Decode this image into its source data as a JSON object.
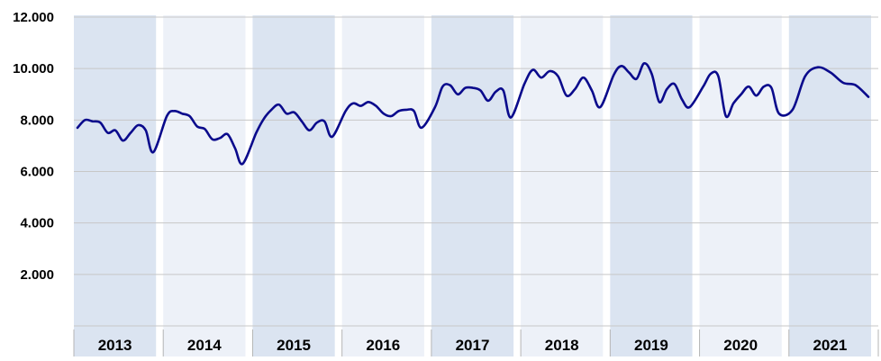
{
  "chart_data": {
    "type": "line",
    "title": "",
    "xlabel": "",
    "ylabel": "",
    "ylim": [
      0,
      12000
    ],
    "yticks": [
      2000,
      4000,
      6000,
      8000,
      10000,
      12000
    ],
    "ytick_labels": [
      "2.000",
      "4.000",
      "6.000",
      "8.000",
      "10.000",
      "12.000"
    ],
    "grid": true,
    "legend": "none",
    "years": [
      "2013",
      "2014",
      "2015",
      "2016",
      "2017",
      "2018",
      "2019",
      "2020",
      "2021"
    ],
    "series": [
      {
        "color": "#0a0a8c",
        "values": [
          [
            7700,
            8000,
            7950,
            7900,
            7500,
            7600,
            7200,
            7500,
            7800,
            7600,
            6750
          ],
          [
            8150,
            8350,
            8250,
            8150,
            7750,
            7650,
            7250,
            7300,
            7450,
            6900,
            6300
          ],
          [
            7500,
            8050,
            8400,
            8600,
            8250,
            8300,
            7950,
            7600,
            7900,
            7950,
            7350
          ],
          [
            8350,
            8650,
            8550,
            8700,
            8550,
            8250,
            8150,
            8350,
            8400,
            8350,
            7700
          ],
          [
            8500,
            9300,
            9350,
            9000,
            9250,
            9250,
            9150,
            8750,
            9100,
            9150,
            8100
          ],
          [
            9400,
            9950,
            9650,
            9900,
            9700,
            8950,
            9200,
            9650,
            9150,
            8500
          ],
          [
            9750,
            10100,
            9850,
            9600,
            10200,
            9800,
            8700,
            9200,
            9400,
            8800,
            8500
          ],
          [
            9300,
            9800,
            9700,
            8150,
            8650,
            9000,
            9300,
            8950,
            9300,
            9250,
            8250
          ],
          [
            8400,
            9700,
            10050,
            9850,
            9450,
            9350,
            8900
          ]
        ]
      }
    ],
    "colors": {
      "band_dark": "#dbe4f1",
      "band_light": "#edf1f8",
      "gridline": "#c7c7c7",
      "line": "#0a0a8c"
    }
  }
}
